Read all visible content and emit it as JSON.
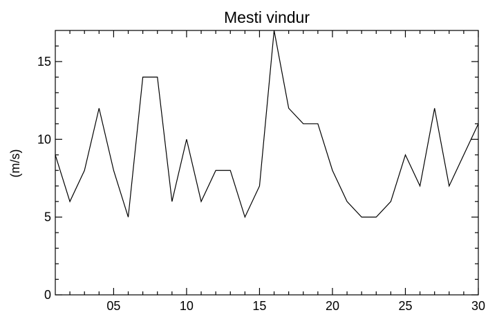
{
  "chart_data": {
    "type": "line",
    "title": "Mesti vindur",
    "xlabel": "",
    "ylabel": "(m/s)",
    "xlim": [
      1,
      30
    ],
    "ylim": [
      0,
      17
    ],
    "x_ticks": [
      {
        "value": 5,
        "label": "05"
      },
      {
        "value": 10,
        "label": "10"
      },
      {
        "value": 15,
        "label": "15"
      },
      {
        "value": 20,
        "label": "20"
      },
      {
        "value": 25,
        "label": "25"
      },
      {
        "value": 30,
        "label": "30"
      }
    ],
    "x_minor_ticks": [
      2,
      3,
      4,
      6,
      7,
      8,
      9,
      11,
      12,
      13,
      14,
      16,
      17,
      18,
      19,
      21,
      22,
      23,
      24,
      26,
      27,
      28,
      29
    ],
    "y_ticks": [
      {
        "value": 0,
        "label": "0"
      },
      {
        "value": 5,
        "label": "5"
      },
      {
        "value": 10,
        "label": "10"
      },
      {
        "value": 15,
        "label": "15"
      }
    ],
    "y_minor_ticks": [
      1,
      2,
      3,
      4,
      6,
      7,
      8,
      9,
      11,
      12,
      13,
      14,
      16
    ],
    "grid": false,
    "line_color": "#000000",
    "series": [
      {
        "x": [
          1,
          2,
          3,
          4,
          5,
          6,
          7,
          8,
          9,
          10,
          11,
          12,
          13,
          14,
          15,
          16,
          17,
          18,
          19,
          20,
          21,
          22,
          23,
          24,
          25,
          26,
          27,
          28,
          29,
          30
        ],
        "values": [
          9,
          6,
          8,
          12,
          8,
          5,
          14,
          14,
          6,
          10,
          6,
          8,
          8,
          5,
          7,
          17,
          12,
          11,
          11,
          8,
          6,
          5,
          5,
          6,
          9,
          7,
          12,
          7,
          9,
          11
        ]
      }
    ]
  }
}
